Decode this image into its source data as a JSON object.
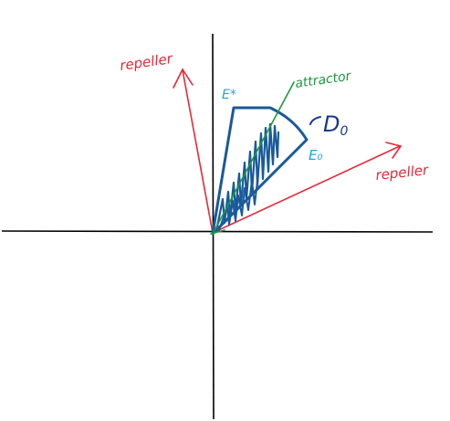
{
  "labels": {
    "repeller_left": "repeller",
    "repeller_right": "repeller",
    "attractor": "attractor",
    "e_star": "E*",
    "e_zero": "E₀",
    "d0": "D",
    "d0_sub": "0"
  },
  "colors": {
    "axes": "#000000",
    "repeller": "#e8273a",
    "attractor": "#1a9a3a",
    "region": "#1a5a9a",
    "eigen_label": "#1aa8d8",
    "d0_label": "#1a3a8a"
  }
}
